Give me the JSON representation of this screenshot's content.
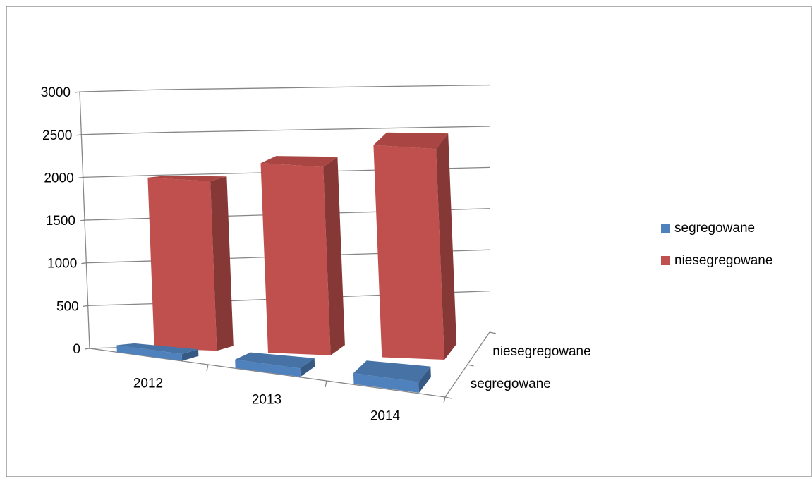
{
  "chart_data": {
    "type": "bar",
    "variant": "3d-column",
    "title": "",
    "xlabel": "",
    "ylabel": "",
    "categories": [
      "2012",
      "2013",
      "2014"
    ],
    "series": [
      {
        "name": "segregowane",
        "values": [
          80,
          100,
          130
        ],
        "color": "#4f81bd"
      },
      {
        "name": "niesegregowane",
        "values": [
          2000,
          2250,
          2550
        ],
        "color": "#c0504d"
      }
    ],
    "depth_labels": [
      "niesegregowane",
      "segregowane"
    ],
    "ylim": [
      0,
      3000
    ],
    "yticks": [
      "0",
      "500",
      "1000",
      "1500",
      "2000",
      "2500",
      "3000"
    ],
    "grid": true,
    "legend_position": "right"
  }
}
